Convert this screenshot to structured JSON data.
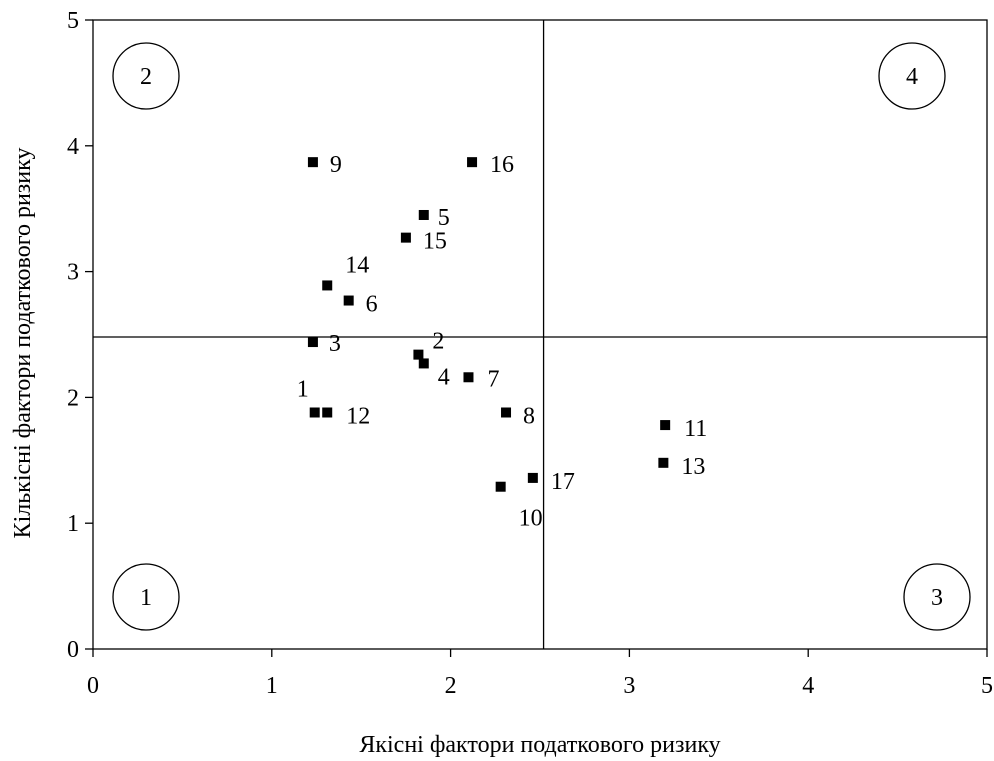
{
  "chart_data": {
    "type": "scatter",
    "xlabel": "Якісні фактори податкового ризику",
    "ylabel": "Кількісні фактори податкового ризику",
    "xlim": [
      0,
      5
    ],
    "ylim": [
      0,
      5
    ],
    "xticks": [
      "0",
      "1",
      "2",
      "3",
      "4",
      "5"
    ],
    "yticks": [
      "0",
      "1",
      "2",
      "3",
      "4",
      "5"
    ],
    "grid": false,
    "divider_lines": {
      "x": 2.52,
      "y": 2.48
    },
    "marker_color": "#000000",
    "points": [
      {
        "label": "1",
        "x": 1.24,
        "y": 1.88
      },
      {
        "label": "2",
        "x": 1.82,
        "y": 2.34
      },
      {
        "label": "3",
        "x": 1.23,
        "y": 2.44
      },
      {
        "label": "4",
        "x": 1.85,
        "y": 2.27
      },
      {
        "label": "5",
        "x": 1.85,
        "y": 3.45
      },
      {
        "label": "6",
        "x": 1.43,
        "y": 2.77
      },
      {
        "label": "7",
        "x": 2.1,
        "y": 2.16
      },
      {
        "label": "8",
        "x": 2.31,
        "y": 1.88
      },
      {
        "label": "9",
        "x": 1.23,
        "y": 3.87
      },
      {
        "label": "10",
        "x": 2.28,
        "y": 1.29
      },
      {
        "label": "11",
        "x": 3.2,
        "y": 1.78
      },
      {
        "label": "12",
        "x": 1.31,
        "y": 1.88
      },
      {
        "label": "13",
        "x": 3.19,
        "y": 1.48
      },
      {
        "label": "14",
        "x": 1.31,
        "y": 2.89
      },
      {
        "label": "15",
        "x": 1.75,
        "y": 3.27
      },
      {
        "label": "16",
        "x": 2.12,
        "y": 3.87
      },
      {
        "label": "17",
        "x": 2.46,
        "y": 1.36
      }
    ],
    "quadrants": [
      {
        "label": "1",
        "position": "bottom-left"
      },
      {
        "label": "2",
        "position": "top-left"
      },
      {
        "label": "3",
        "position": "bottom-right"
      },
      {
        "label": "4",
        "position": "top-right"
      }
    ]
  }
}
